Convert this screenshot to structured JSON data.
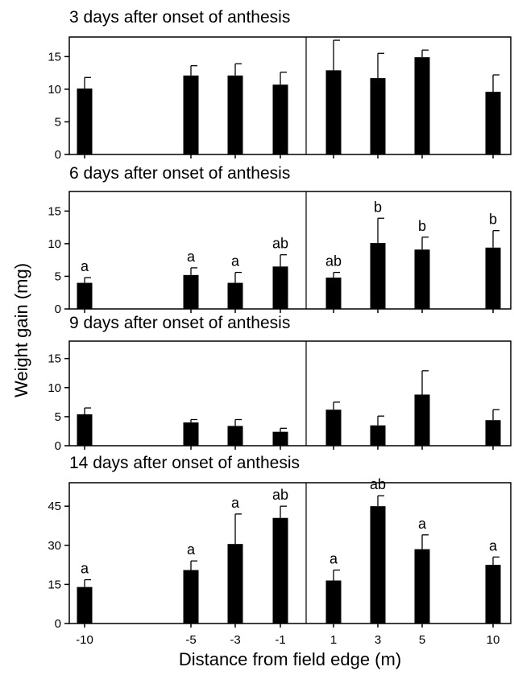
{
  "figure": {
    "ylabel": "Weight gain (mg)",
    "xlabel": "Distance from field edge (m)"
  },
  "chart_data": [
    {
      "type": "bar",
      "title": "3 days after onset of anthesis",
      "categories": [
        "-10",
        "-5",
        "-3",
        "-1",
        "1",
        "3",
        "5",
        "10"
      ],
      "values": [
        10.1,
        12.1,
        12.1,
        10.7,
        12.9,
        11.7,
        14.9,
        9.6
      ],
      "errors": [
        1.7,
        1.5,
        1.8,
        1.9,
        4.6,
        3.8,
        1.1,
        2.6
      ],
      "labels": [],
      "ylim": [
        0,
        18
      ],
      "yticks": [
        0,
        5,
        10,
        15
      ],
      "xlabel": "Distance from field edge (m)",
      "ylabel": "Weight gain (mg)",
      "divider_between": [
        "-1",
        "1"
      ],
      "grid": false
    },
    {
      "type": "bar",
      "title": "6 days after onset of anthesis",
      "categories": [
        "-10",
        "-5",
        "-3",
        "-1",
        "1",
        "3",
        "5",
        "10"
      ],
      "values": [
        4.0,
        5.2,
        4.0,
        6.5,
        4.8,
        10.1,
        9.1,
        9.4
      ],
      "errors": [
        0.8,
        1.1,
        1.6,
        1.8,
        0.8,
        3.8,
        1.9,
        2.6
      ],
      "labels": [
        "a",
        "a",
        "a",
        "ab",
        "ab",
        "b",
        "b",
        "b"
      ],
      "ylim": [
        0,
        18
      ],
      "yticks": [
        0,
        5,
        10,
        15
      ],
      "xlabel": "Distance from field edge (m)",
      "ylabel": "Weight gain (mg)",
      "divider_between": [
        "-1",
        "1"
      ],
      "grid": false
    },
    {
      "type": "bar",
      "title": "9 days after onset of anthesis",
      "categories": [
        "-10",
        "-5",
        "-3",
        "-1",
        "1",
        "3",
        "5",
        "10"
      ],
      "values": [
        5.4,
        4.0,
        3.4,
        2.4,
        6.2,
        3.5,
        8.8,
        4.4
      ],
      "errors": [
        1.1,
        0.5,
        1.1,
        0.6,
        1.3,
        1.6,
        4.1,
        1.8
      ],
      "labels": [],
      "ylim": [
        0,
        18
      ],
      "yticks": [
        0,
        5,
        10,
        15
      ],
      "xlabel": "Distance from field edge (m)",
      "ylabel": "Weight gain (mg)",
      "divider_between": [
        "-1",
        "1"
      ],
      "grid": false
    },
    {
      "type": "bar",
      "title": "14 days after onset of anthesis",
      "categories": [
        "-10",
        "-5",
        "-3",
        "-1",
        "1",
        "3",
        "5",
        "10"
      ],
      "values": [
        14.0,
        20.5,
        30.5,
        40.5,
        16.5,
        45.0,
        28.5,
        22.5
      ],
      "errors": [
        2.8,
        3.5,
        11.5,
        4.5,
        4.0,
        4.0,
        5.5,
        3.0
      ],
      "labels": [
        "a",
        "a",
        "a",
        "ab",
        "a",
        "ab",
        "a",
        "a"
      ],
      "ylim": [
        0,
        54
      ],
      "yticks": [
        0,
        15,
        30,
        45
      ],
      "xlabel": "Distance from field edge (m)",
      "ylabel": "Weight gain (mg)",
      "divider_between": [
        "-1",
        "1"
      ],
      "grid": false
    }
  ]
}
